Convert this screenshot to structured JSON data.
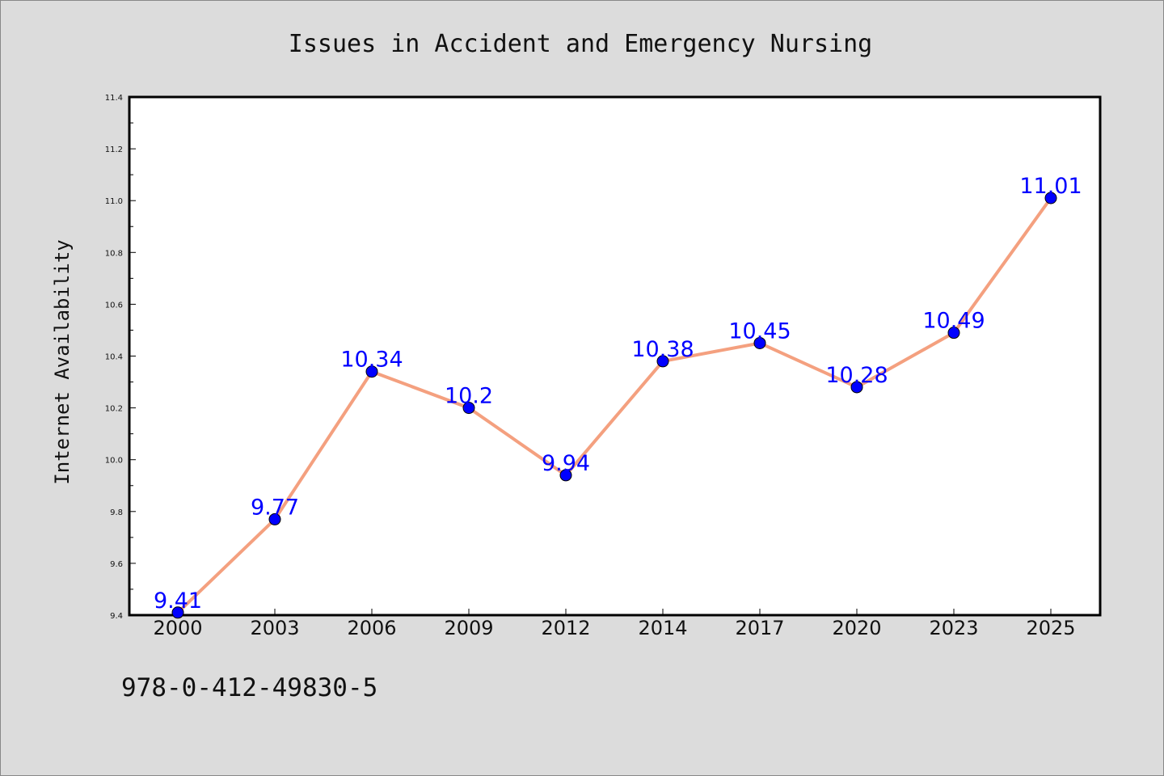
{
  "chart_data": {
    "type": "line",
    "title": "Issues in Accident and Emergency Nursing",
    "ylabel": "Internet Availability",
    "xlabel": "",
    "categories": [
      "2000",
      "2003",
      "2006",
      "2009",
      "2012",
      "2014",
      "2017",
      "2020",
      "2023",
      "2025"
    ],
    "series": [
      {
        "values": [
          9.41,
          9.77,
          10.34,
          10.2,
          9.94,
          10.38,
          10.45,
          10.28,
          10.49,
          11.01
        ],
        "data_labels": [
          "9.41",
          "9.77",
          "10.34",
          "10.2",
          "9.94",
          "10.38",
          "10.45",
          "10.28",
          "10.49",
          "11.01"
        ],
        "line_color": "#f4a07f",
        "marker_color": "#0000ff"
      }
    ],
    "ylim": [
      9.4,
      11.4
    ],
    "yticks": [
      "9.4",
      "9.6",
      "9.8",
      "10.0",
      "10.2",
      "10.4",
      "10.6",
      "10.8",
      "11.0",
      "11.2",
      "11.4"
    ],
    "grid": false,
    "label_color": "#0000ff"
  },
  "footer": {
    "isbn": "978-0-412-49830-5"
  }
}
